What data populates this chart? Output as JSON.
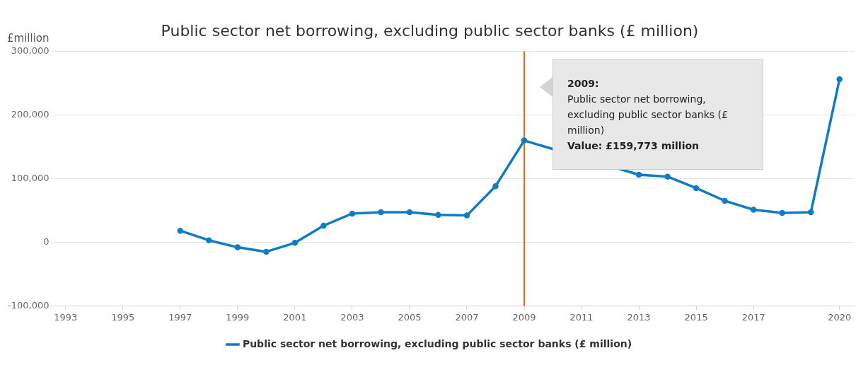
{
  "chart_data": {
    "type": "line",
    "title": "Public sector net borrowing, excluding public sector banks (£ million)",
    "ylabel": "£million",
    "x": [
      1997,
      1998,
      1999,
      2000,
      2001,
      2002,
      2003,
      2004,
      2005,
      2006,
      2007,
      2008,
      2009,
      2010,
      2011,
      2012,
      2013,
      2014,
      2015,
      2016,
      2017,
      2018,
      2019,
      2020
    ],
    "series": [
      {
        "name": "Public sector net borrowing, excluding public sector banks (£ million)",
        "color": "#0f7cc4",
        "values": [
          18000,
          3000,
          -8000,
          -15000,
          -1000,
          26000,
          45000,
          47000,
          47000,
          43000,
          42000,
          88000,
          159773,
          null,
          null,
          null,
          106000,
          103000,
          85000,
          65000,
          51000,
          46000,
          47000,
          256000
        ]
      }
    ],
    "xlim": [
      1992.5,
      2020.5
    ],
    "xticks": [
      1993,
      1995,
      1997,
      1999,
      2001,
      2003,
      2005,
      2007,
      2009,
      2011,
      2013,
      2015,
      2017,
      2020
    ],
    "ylim": [
      -100000,
      300000
    ],
    "yticks": [
      {
        "value": -100000,
        "label": "-100,000"
      },
      {
        "value": 0,
        "label": "0"
      },
      {
        "value": 100000,
        "label": "100,000"
      },
      {
        "value": 200000,
        "label": "200,000"
      },
      {
        "value": 300000,
        "label": "300,000"
      }
    ],
    "ref_lines": [
      {
        "axis": "x",
        "value": 2009,
        "color": "#e8692b"
      }
    ],
    "annotations": [
      "2009:\nPublic sector net borrowing,\nexcluding public sector banks (£\nmillion)\nValue: £159,773 million"
    ],
    "grid": "y",
    "legend": "bottom",
    "marker": "circle",
    "line_style": "solid"
  }
}
